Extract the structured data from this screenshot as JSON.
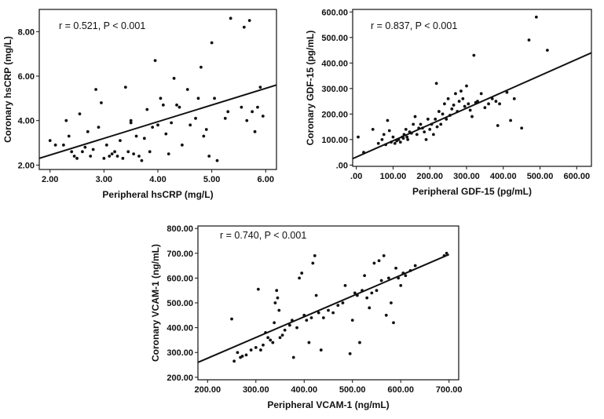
{
  "chart_data": [
    {
      "type": "scatter",
      "title": "",
      "annotation": "r = 0.521, P < 0.001",
      "xlabel": "Peripheral hsCRP (mg/L)",
      "ylabel": "Coronary hsCRP (mg/L)",
      "xlim": [
        1.8,
        6.2
      ],
      "ylim": [
        1.8,
        9.0
      ],
      "xticks": [
        2.0,
        3.0,
        4.0,
        5.0,
        6.0
      ],
      "xtick_labels": [
        "2.00",
        "3.00",
        "4.00",
        "5.00",
        "6.00"
      ],
      "yticks": [
        2.0,
        4.0,
        6.0,
        8.0
      ],
      "ytick_labels": [
        "2.00",
        "4.00",
        "6.00",
        "8.00"
      ],
      "fit_line": {
        "x0": 1.8,
        "y0": 2.3,
        "x1": 6.2,
        "y1": 5.6
      },
      "points": [
        [
          2.0,
          3.1
        ],
        [
          2.1,
          2.9
        ],
        [
          2.25,
          2.9
        ],
        [
          2.3,
          4.0
        ],
        [
          2.35,
          3.3
        ],
        [
          2.4,
          2.6
        ],
        [
          2.45,
          2.4
        ],
        [
          2.5,
          2.3
        ],
        [
          2.55,
          4.3
        ],
        [
          2.6,
          2.6
        ],
        [
          2.65,
          2.8
        ],
        [
          2.7,
          3.5
        ],
        [
          2.75,
          2.4
        ],
        [
          2.8,
          2.7
        ],
        [
          2.85,
          5.4
        ],
        [
          2.9,
          3.7
        ],
        [
          2.95,
          4.8
        ],
        [
          3.0,
          2.3
        ],
        [
          3.05,
          2.9
        ],
        [
          3.1,
          2.4
        ],
        [
          3.15,
          2.5
        ],
        [
          3.2,
          2.6
        ],
        [
          3.25,
          2.4
        ],
        [
          3.3,
          3.1
        ],
        [
          3.35,
          2.3
        ],
        [
          3.4,
          5.5
        ],
        [
          3.45,
          2.6
        ],
        [
          3.5,
          3.9
        ],
        [
          3.5,
          4.0
        ],
        [
          3.55,
          2.5
        ],
        [
          3.6,
          3.3
        ],
        [
          3.65,
          2.4
        ],
        [
          3.7,
          2.2
        ],
        [
          3.75,
          3.2
        ],
        [
          3.8,
          4.5
        ],
        [
          3.85,
          2.6
        ],
        [
          3.9,
          3.7
        ],
        [
          3.95,
          6.7
        ],
        [
          4.0,
          3.8
        ],
        [
          4.05,
          5.0
        ],
        [
          4.1,
          4.7
        ],
        [
          4.15,
          3.4
        ],
        [
          4.2,
          2.5
        ],
        [
          4.25,
          3.9
        ],
        [
          4.3,
          5.9
        ],
        [
          4.35,
          4.7
        ],
        [
          4.4,
          4.6
        ],
        [
          4.45,
          2.9
        ],
        [
          4.55,
          5.4
        ],
        [
          4.6,
          3.8
        ],
        [
          4.7,
          4.1
        ],
        [
          4.75,
          5.0
        ],
        [
          4.8,
          6.4
        ],
        [
          4.85,
          3.3
        ],
        [
          4.9,
          3.6
        ],
        [
          4.95,
          2.4
        ],
        [
          5.0,
          7.5
        ],
        [
          5.05,
          5.0
        ],
        [
          5.1,
          2.2
        ],
        [
          5.25,
          4.1
        ],
        [
          5.3,
          4.4
        ],
        [
          5.35,
          8.6
        ],
        [
          5.55,
          4.6
        ],
        [
          5.6,
          8.2
        ],
        [
          5.65,
          4.0
        ],
        [
          5.7,
          8.5
        ],
        [
          5.75,
          4.4
        ],
        [
          5.8,
          3.5
        ],
        [
          5.85,
          4.6
        ],
        [
          5.9,
          5.5
        ],
        [
          5.95,
          4.2
        ]
      ]
    },
    {
      "type": "scatter",
      "title": "",
      "annotation": "r = 0.837, P < 0.001",
      "xlabel": "Peripheral GDF-15 (pg/mL)",
      "ylabel": "Coronary GDF-15 (pg/mL)",
      "xlim": [
        -10,
        640
      ],
      "ylim": [
        -5,
        610
      ],
      "xticks": [
        0,
        100,
        200,
        300,
        400,
        500,
        600
      ],
      "xtick_labels": [
        ".00",
        "100.00",
        "200.00",
        "300.00",
        "400.00",
        "500.00",
        "600.00"
      ],
      "yticks": [
        0,
        100,
        200,
        300,
        400,
        500,
        600
      ],
      "ytick_labels": [
        ".00",
        "100.00",
        "200.00",
        "300.00",
        "400.00",
        "500.00",
        "600.00"
      ],
      "fit_line": {
        "x0": -10,
        "y0": 25,
        "x1": 640,
        "y1": 440
      },
      "points": [
        [
          5,
          110
        ],
        [
          20,
          50
        ],
        [
          45,
          140
        ],
        [
          60,
          85
        ],
        [
          70,
          100
        ],
        [
          75,
          120
        ],
        [
          80,
          80
        ],
        [
          85,
          175
        ],
        [
          90,
          135
        ],
        [
          95,
          90
        ],
        [
          100,
          110
        ],
        [
          105,
          85
        ],
        [
          110,
          95
        ],
        [
          115,
          100
        ],
        [
          120,
          90
        ],
        [
          125,
          110
        ],
        [
          128,
          105
        ],
        [
          130,
          120
        ],
        [
          135,
          140
        ],
        [
          138,
          110
        ],
        [
          140,
          100
        ],
        [
          145,
          130
        ],
        [
          150,
          125
        ],
        [
          155,
          160
        ],
        [
          160,
          190
        ],
        [
          165,
          120
        ],
        [
          170,
          145
        ],
        [
          175,
          160
        ],
        [
          180,
          145
        ],
        [
          185,
          130
        ],
        [
          190,
          100
        ],
        [
          195,
          180
        ],
        [
          200,
          140
        ],
        [
          205,
          160
        ],
        [
          210,
          120
        ],
        [
          215,
          180
        ],
        [
          218,
          320
        ],
        [
          220,
          150
        ],
        [
          225,
          210
        ],
        [
          230,
          160
        ],
        [
          235,
          200
        ],
        [
          240,
          240
        ],
        [
          245,
          180
        ],
        [
          250,
          260
        ],
        [
          255,
          195
        ],
        [
          260,
          220
        ],
        [
          265,
          235
        ],
        [
          270,
          280
        ],
        [
          275,
          210
        ],
        [
          280,
          250
        ],
        [
          285,
          290
        ],
        [
          290,
          260
        ],
        [
          295,
          230
        ],
        [
          300,
          310
        ],
        [
          305,
          240
        ],
        [
          310,
          215
        ],
        [
          315,
          190
        ],
        [
          320,
          430
        ],
        [
          325,
          245
        ],
        [
          330,
          250
        ],
        [
          340,
          280
        ],
        [
          350,
          225
        ],
        [
          360,
          240
        ],
        [
          370,
          260
        ],
        [
          380,
          250
        ],
        [
          385,
          155
        ],
        [
          390,
          240
        ],
        [
          410,
          285
        ],
        [
          420,
          175
        ],
        [
          430,
          260
        ],
        [
          450,
          145
        ],
        [
          470,
          490
        ],
        [
          490,
          580
        ],
        [
          520,
          450
        ]
      ]
    },
    {
      "type": "scatter",
      "title": "",
      "annotation": "r = 0.740, P < 0.001",
      "xlabel": "Peripheral VCAM-1 (ng/mL)",
      "ylabel": "Coronary VCAM-1 (ng/mL)",
      "xlim": [
        180,
        720
      ],
      "ylim": [
        190,
        810
      ],
      "xticks": [
        200,
        300,
        400,
        500,
        600,
        700
      ],
      "xtick_labels": [
        "200.00",
        "300.00",
        "400.00",
        "500.00",
        "600.00",
        "700.00"
      ],
      "yticks": [
        200,
        300,
        400,
        500,
        600,
        700,
        800
      ],
      "ytick_labels": [
        "200.00",
        "300.00",
        "400.00",
        "500.00",
        "600.00",
        "700.00",
        "800.00"
      ],
      "fit_line": {
        "x0": 180,
        "y0": 260,
        "x1": 700,
        "y1": 695
      },
      "points": [
        [
          250,
          435
        ],
        [
          255,
          265
        ],
        [
          262,
          300
        ],
        [
          268,
          280
        ],
        [
          272,
          285
        ],
        [
          280,
          290
        ],
        [
          290,
          310
        ],
        [
          300,
          320
        ],
        [
          305,
          555
        ],
        [
          310,
          310
        ],
        [
          315,
          330
        ],
        [
          320,
          380
        ],
        [
          325,
          360
        ],
        [
          330,
          350
        ],
        [
          335,
          340
        ],
        [
          338,
          420
        ],
        [
          340,
          500
        ],
        [
          343,
          550
        ],
        [
          345,
          520
        ],
        [
          348,
          470
        ],
        [
          350,
          360
        ],
        [
          355,
          370
        ],
        [
          360,
          390
        ],
        [
          370,
          410
        ],
        [
          375,
          430
        ],
        [
          378,
          280
        ],
        [
          385,
          400
        ],
        [
          390,
          600
        ],
        [
          395,
          620
        ],
        [
          400,
          450
        ],
        [
          405,
          430
        ],
        [
          410,
          340
        ],
        [
          415,
          440
        ],
        [
          418,
          660
        ],
        [
          422,
          690
        ],
        [
          425,
          530
        ],
        [
          430,
          460
        ],
        [
          435,
          310
        ],
        [
          440,
          440
        ],
        [
          450,
          470
        ],
        [
          460,
          460
        ],
        [
          470,
          490
        ],
        [
          480,
          500
        ],
        [
          485,
          570
        ],
        [
          495,
          295
        ],
        [
          500,
          430
        ],
        [
          505,
          540
        ],
        [
          510,
          530
        ],
        [
          515,
          340
        ],
        [
          520,
          550
        ],
        [
          525,
          610
        ],
        [
          530,
          520
        ],
        [
          535,
          480
        ],
        [
          540,
          540
        ],
        [
          545,
          660
        ],
        [
          550,
          550
        ],
        [
          555,
          670
        ],
        [
          560,
          590
        ],
        [
          565,
          690
        ],
        [
          570,
          450
        ],
        [
          575,
          600
        ],
        [
          580,
          500
        ],
        [
          585,
          420
        ],
        [
          590,
          640
        ],
        [
          595,
          600
        ],
        [
          600,
          570
        ],
        [
          605,
          620
        ],
        [
          610,
          610
        ],
        [
          620,
          630
        ],
        [
          630,
          650
        ],
        [
          690,
          690
        ],
        [
          695,
          700
        ]
      ]
    }
  ]
}
